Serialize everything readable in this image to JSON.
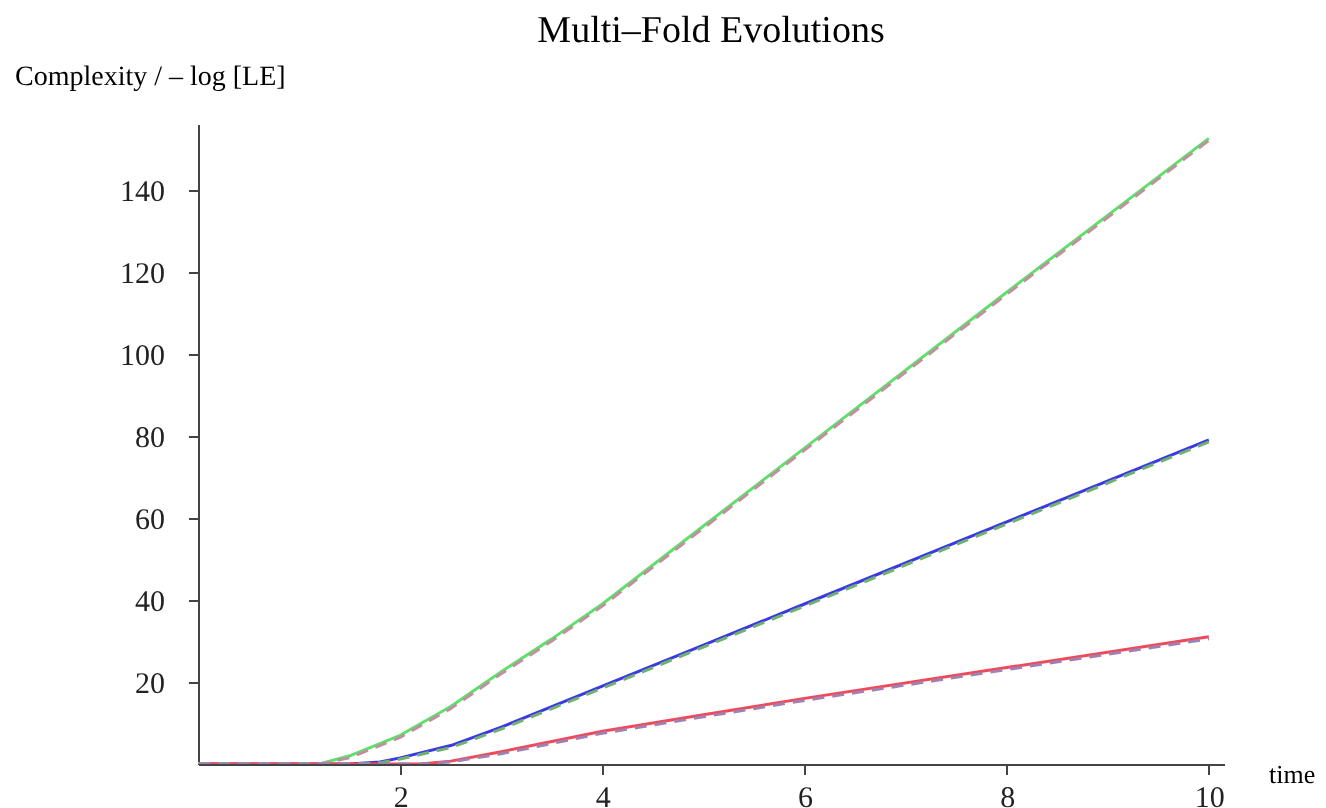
{
  "chart_data": {
    "type": "line",
    "title": "Multi–Fold Evolutions",
    "xlabel": "time",
    "ylabel": "Complexity / – log [LE]",
    "xlim": [
      0,
      10.15
    ],
    "ylim": [
      0,
      156
    ],
    "xticks": [
      2,
      4,
      6,
      8,
      10
    ],
    "yticks": [
      20,
      40,
      60,
      80,
      100,
      120,
      140
    ],
    "grid": false,
    "legend": false,
    "marker": "none",
    "series": [
      {
        "color": "#5ee06a",
        "line_style": "solid",
        "x": [
          0,
          1,
          1.2,
          1.5,
          2,
          2.5,
          3,
          3.5,
          4,
          5,
          6,
          8,
          10
        ],
        "values": [
          0,
          0,
          0,
          2,
          7,
          14,
          22.5,
          30.5,
          39,
          58,
          77,
          115,
          152.5
        ]
      },
      {
        "color": "#3a3ae0",
        "line_style": "solid",
        "x": [
          0,
          1.5,
          1.8,
          2,
          2.5,
          3,
          3.5,
          4,
          5,
          6,
          8,
          10
        ],
        "values": [
          0,
          0,
          0.5,
          1.5,
          4.5,
          9,
          14,
          19,
          29,
          39,
          59,
          79
        ]
      },
      {
        "color": "#f04a5a",
        "line_style": "solid",
        "x": [
          0,
          2.2,
          2.5,
          3,
          3.5,
          4,
          5,
          6,
          8,
          10
        ],
        "values": [
          0,
          0,
          0.7,
          3,
          5.5,
          8,
          12,
          16,
          23.5,
          31
        ]
      },
      {
        "color": "#c090a0",
        "line_style": "dashed",
        "x": [
          0,
          1,
          1.2,
          1.5,
          2,
          2.5,
          3,
          3.5,
          4,
          5,
          6,
          8,
          10
        ],
        "values": [
          0,
          0,
          0,
          1.5,
          6.5,
          13.5,
          22,
          30,
          38.5,
          57.5,
          76.5,
          114.5,
          152
        ]
      },
      {
        "color": "#70b070",
        "line_style": "dashed",
        "x": [
          0,
          1.5,
          1.8,
          2,
          2.5,
          3,
          3.5,
          4,
          5,
          6,
          8,
          10
        ],
        "values": [
          0,
          0,
          0.3,
          1.2,
          4,
          8.5,
          13.5,
          18.5,
          28.5,
          38.5,
          58.5,
          78.5
        ]
      },
      {
        "color": "#a080b0",
        "line_style": "dashed",
        "x": [
          0,
          2.2,
          2.5,
          3,
          3.5,
          4,
          5,
          6,
          8,
          10
        ],
        "values": [
          0,
          0,
          0.5,
          2.5,
          5,
          7.5,
          11.5,
          15.5,
          23,
          30.5
        ]
      }
    ]
  }
}
